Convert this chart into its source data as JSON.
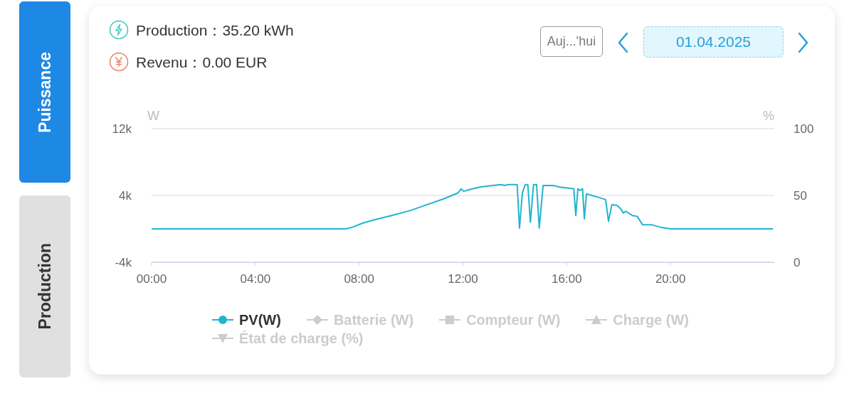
{
  "chart_data": {
    "type": "line",
    "title": "Production：35.20 kWh",
    "subtitle": "Revenu：0.00 EUR",
    "ylabel": "W",
    "y2label": "%",
    "annotations": [
      "Auj...'hui",
      "01.04.2025",
      "Puissance",
      "Production"
    ],
    "x": [
      0,
      4,
      7,
      7.5,
      7.74,
      8.15,
      8.61,
      9.25,
      9.98,
      10.62,
      11.26,
      11.81,
      11.93,
      12.03,
      12.25,
      12.64,
      13.13,
      13.47,
      13.62,
      13.72,
      14.09,
      14.18,
      14.29,
      14.4,
      14.5,
      14.6,
      14.72,
      14.84,
      14.94,
      15.09,
      15.48,
      15.73,
      16.02,
      16.27,
      16.35,
      16.43,
      16.51,
      16.61,
      16.68,
      16.76,
      16.96,
      17.2,
      17.5,
      17.61,
      17.74,
      17.94,
      18.08,
      18.18,
      18.28,
      18.53,
      18.72,
      18.92,
      19.26,
      19.61,
      20,
      21,
      23.95
    ],
    "xlim": [
      0,
      24
    ],
    "xticks": [
      {
        "value": 0,
        "label": "00:00"
      },
      {
        "value": 4,
        "label": "04:00"
      },
      {
        "value": 8,
        "label": "08:00"
      },
      {
        "value": 12,
        "label": "12:00"
      },
      {
        "value": 16,
        "label": "16:00"
      },
      {
        "value": 20,
        "label": "20:00"
      }
    ],
    "ylim": [
      -4000,
      12000
    ],
    "yticks": [
      {
        "value": -4000,
        "label": "-4k"
      },
      {
        "value": 4000,
        "label": "4k"
      },
      {
        "value": 12000,
        "label": "12k"
      }
    ],
    "y2lim": [
      0,
      100
    ],
    "y2ticks": [
      0,
      50,
      100
    ],
    "grid": "y",
    "legend": "bottom",
    "series": [
      {
        "name": "PV(W)",
        "color": "#20b5cf",
        "values": [
          0,
          0,
          0,
          0,
          200,
          700,
          1100,
          1600,
          2200,
          2900,
          3600,
          4300,
          4800,
          4500,
          4700,
          5000,
          5200,
          5300,
          5200,
          5300,
          5300,
          100,
          4300,
          5300,
          5300,
          800,
          5300,
          5300,
          100,
          5200,
          5200,
          5000,
          4900,
          4800,
          1600,
          4800,
          4600,
          4800,
          1200,
          4200,
          4000,
          3800,
          3500,
          900,
          2900,
          2800,
          2400,
          1900,
          2100,
          1600,
          1500,
          500,
          500,
          200,
          0,
          0,
          0
        ]
      },
      {
        "name": "Batterie (W)",
        "color": "#cccccc",
        "values": [
          null,
          null,
          null,
          null,
          null,
          null,
          null,
          null,
          null,
          null,
          null,
          null,
          null,
          null,
          null,
          null,
          null,
          null,
          null,
          null,
          null,
          null,
          null,
          null,
          null,
          null,
          null,
          null,
          null,
          null,
          null,
          null,
          null,
          null,
          null,
          null,
          null,
          null,
          null,
          null,
          null,
          null,
          null,
          null,
          null,
          null,
          null,
          null,
          null,
          null,
          null,
          null,
          null,
          null,
          null,
          null,
          null
        ]
      },
      {
        "name": "Compteur (W)",
        "color": "#cccccc",
        "values": [
          null,
          null,
          null,
          null,
          null,
          null,
          null,
          null,
          null,
          null,
          null,
          null,
          null,
          null,
          null,
          null,
          null,
          null,
          null,
          null,
          null,
          null,
          null,
          null,
          null,
          null,
          null,
          null,
          null,
          null,
          null,
          null,
          null,
          null,
          null,
          null,
          null,
          null,
          null,
          null,
          null,
          null,
          null,
          null,
          null,
          null,
          null,
          null,
          null,
          null,
          null,
          null,
          null,
          null,
          null,
          null,
          null
        ]
      },
      {
        "name": "Charge (W)",
        "color": "#cccccc",
        "values": [
          null,
          null,
          null,
          null,
          null,
          null,
          null,
          null,
          null,
          null,
          null,
          null,
          null,
          null,
          null,
          null,
          null,
          null,
          null,
          null,
          null,
          null,
          null,
          null,
          null,
          null,
          null,
          null,
          null,
          null,
          null,
          null,
          null,
          null,
          null,
          null,
          null,
          null,
          null,
          null,
          null,
          null,
          null,
          null,
          null,
          null,
          null,
          null,
          null,
          null,
          null,
          null,
          null,
          null,
          null,
          null,
          null
        ]
      },
      {
        "name": "État de charge (%)",
        "color": "#cccccc",
        "values": [
          null,
          null,
          null,
          null,
          null,
          null,
          null,
          null,
          null,
          null,
          null,
          null,
          null,
          null,
          null,
          null,
          null,
          null,
          null,
          null,
          null,
          null,
          null,
          null,
          null,
          null,
          null,
          null,
          null,
          null,
          null,
          null,
          null,
          null,
          null,
          null,
          null,
          null,
          null,
          null,
          null,
          null,
          null,
          null,
          null,
          null,
          null,
          null,
          null,
          null,
          null,
          null,
          null,
          null,
          null,
          null,
          null
        ]
      }
    ]
  }
}
